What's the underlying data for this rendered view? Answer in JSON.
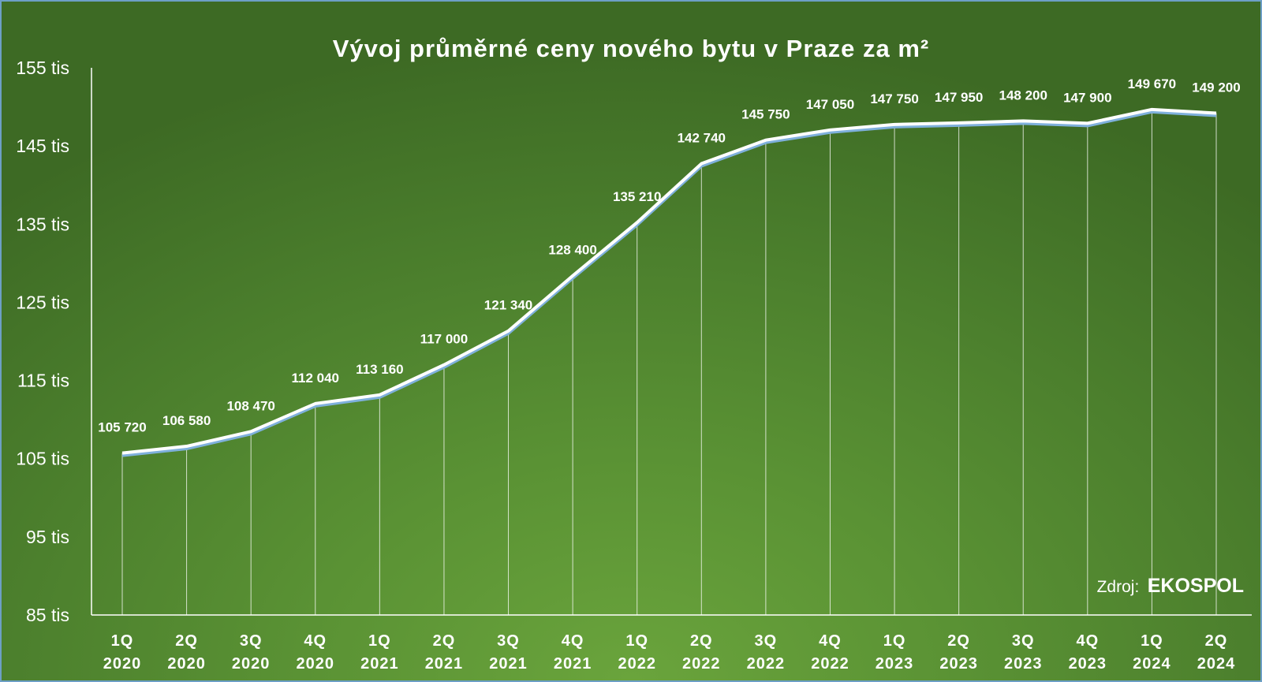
{
  "chart_data": {
    "type": "line",
    "title": "Vývoj průměrné ceny nového bytu v Praze za m²",
    "xlabel": "",
    "ylabel": "",
    "categories": [
      [
        "1Q",
        "2020"
      ],
      [
        "2Q",
        "2020"
      ],
      [
        "3Q",
        "2020"
      ],
      [
        "4Q",
        "2020"
      ],
      [
        "1Q",
        "2021"
      ],
      [
        "2Q",
        "2021"
      ],
      [
        "3Q",
        "2021"
      ],
      [
        "4Q",
        "2021"
      ],
      [
        "1Q",
        "2022"
      ],
      [
        "2Q",
        "2022"
      ],
      [
        "3Q",
        "2022"
      ],
      [
        "4Q",
        "2022"
      ],
      [
        "1Q",
        "2023"
      ],
      [
        "2Q",
        "2023"
      ],
      [
        "3Q",
        "2023"
      ],
      [
        "4Q",
        "2023"
      ],
      [
        "1Q",
        "2024"
      ],
      [
        "2Q",
        "2024"
      ]
    ],
    "series": [
      {
        "values": [
          105720,
          106580,
          108470,
          112040,
          113160,
          117000,
          121340,
          128400,
          135210,
          142740,
          145750,
          147050,
          147750,
          147950,
          148200,
          147900,
          149670,
          149200
        ],
        "data_labels": [
          "105 720",
          "106 580",
          "108 470",
          "112 040",
          "113 160",
          "117 000",
          "121 340",
          "128 400",
          "135 210",
          "142 740",
          "145 750",
          "147 050",
          "147 750",
          "147 950",
          "148 200",
          "147 900",
          "149 670",
          "149 200"
        ]
      }
    ],
    "ylim": [
      85000,
      155000
    ],
    "yticks": [
      85000,
      95000,
      105000,
      115000,
      125000,
      135000,
      145000,
      155000
    ],
    "ytick_labels": [
      "85 tis",
      "95 tis",
      "105 tis",
      "115 tis",
      "125 tis",
      "135 tis",
      "145 tis",
      "155 tis"
    ],
    "drop_lines": true,
    "grid": false,
    "legend": "none",
    "line_color": "#ffffff",
    "shadow_color": "#7fb0dc"
  },
  "source": {
    "prefix": "Zdroj:",
    "name": "EKOSPOL"
  }
}
